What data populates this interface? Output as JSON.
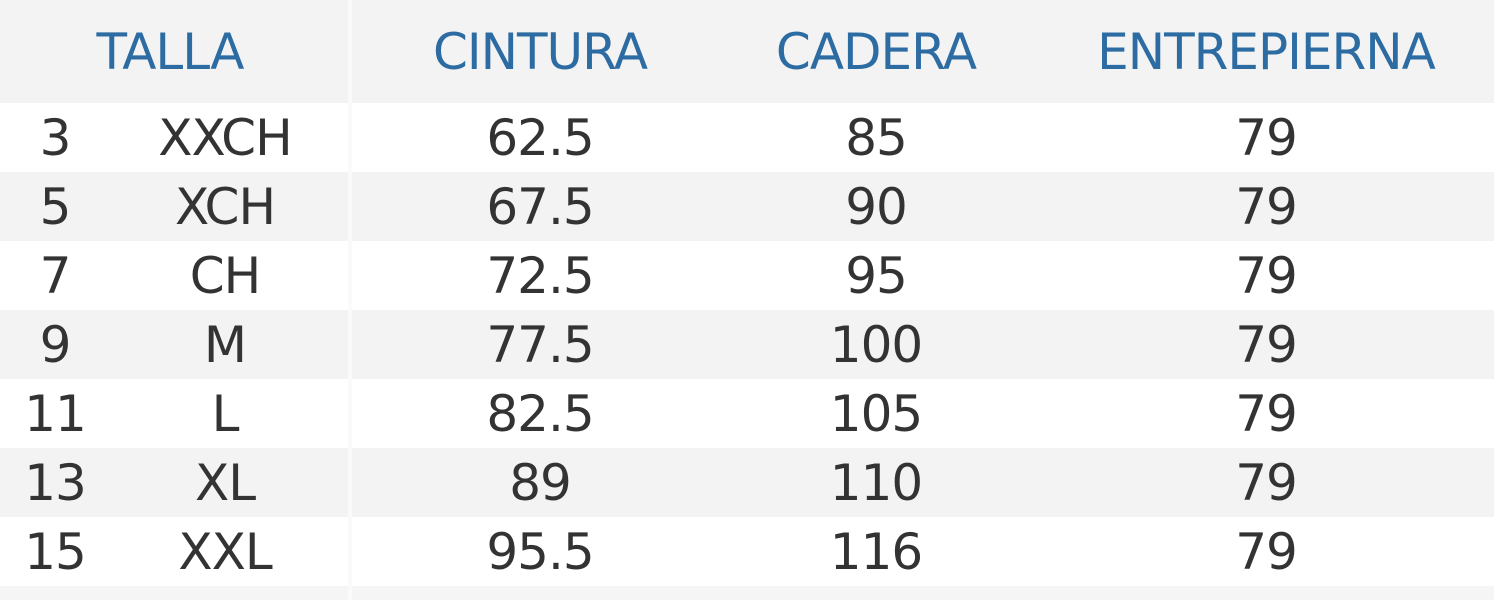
{
  "header": {
    "talla": "TALLA",
    "cintura": "CINTURA",
    "cadera": "CADERA",
    "entrepierna": "ENTREPIERNA"
  },
  "rows": [
    {
      "num": "3",
      "size": "XXCH",
      "cintura": "62.5",
      "cadera": "85",
      "entrepierna": "79"
    },
    {
      "num": "5",
      "size": "XCH",
      "cintura": "67.5",
      "cadera": "90",
      "entrepierna": "79"
    },
    {
      "num": "7",
      "size": "CH",
      "cintura": "72.5",
      "cadera": "95",
      "entrepierna": "79"
    },
    {
      "num": "9",
      "size": "M",
      "cintura": "77.5",
      "cadera": "100",
      "entrepierna": "79"
    },
    {
      "num": "11",
      "size": "L",
      "cintura": "82.5",
      "cadera": "105",
      "entrepierna": "79"
    },
    {
      "num": "13",
      "size": "XL",
      "cintura": "89",
      "cadera": "110",
      "entrepierna": "79"
    },
    {
      "num": "15",
      "size": "XXL",
      "cintura": "95.5",
      "cadera": "116",
      "entrepierna": "79"
    }
  ],
  "colors": {
    "header_text": "#2c6ca3",
    "body_text": "#333333"
  }
}
